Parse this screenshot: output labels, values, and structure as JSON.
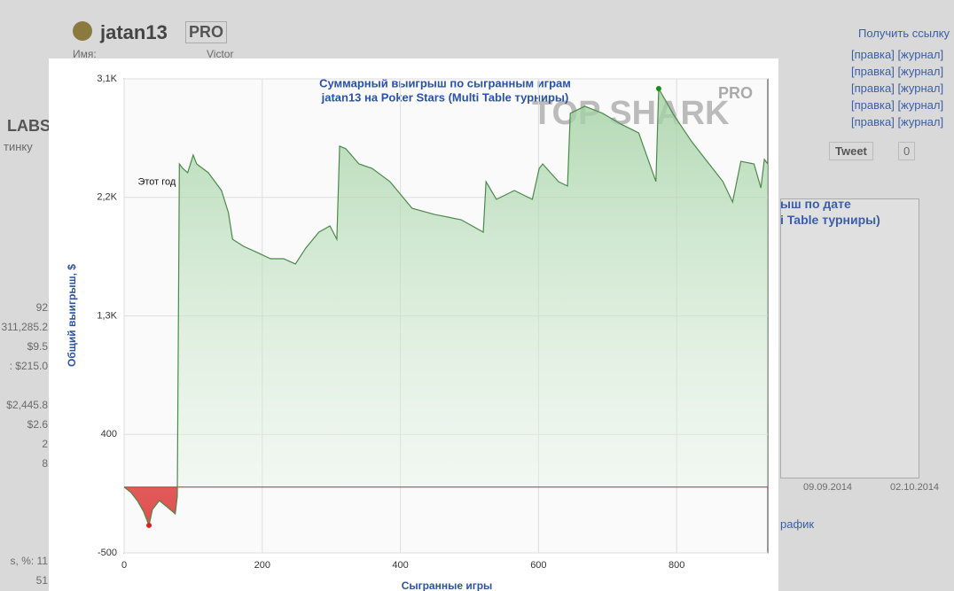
{
  "page": {
    "username": "jatan13",
    "badge": "PRO",
    "name_label": "Имя:",
    "name_value": "Victor",
    "get_link": "Получить ссылку",
    "edit_links": [
      "[правка] [журнал]",
      "[правка] [журнал]",
      "[правка] [журнал]",
      "[правка] [журнал]",
      "[правка] [журнал]"
    ],
    "tweet": "Tweet",
    "tweet_count": "0",
    "logo": "LABS",
    "left_link": "тинку",
    "left_stats": [
      "92",
      "311,285.2",
      "$9.5",
      ": $215.0",
      "$2,445.8",
      "$2.6",
      "2",
      "8",
      "s, %: 11",
      "51"
    ],
    "bg_chart_title": [
      "ыш по дате",
      "i Table турниры)"
    ],
    "bg_chart_dates": [
      "09.09.2014",
      "02.10.2014"
    ],
    "bg_chart_link": "рафик",
    "watermark": "TOP SHARK",
    "watermark_pro": "PRO"
  },
  "chart_data": {
    "type": "area",
    "title": "Суммарный выигрыш по сыгранным играм",
    "subtitle": "jatan13 на Poker Stars (Multi Table турниры)",
    "x_label": "Сыгранные игры",
    "y_label": "Общий выигрыш, $",
    "annotation": "Этот год",
    "annotation_x": 80,
    "xlim": [
      0,
      932
    ],
    "xticks": [
      0,
      200,
      400,
      600,
      800
    ],
    "ylim": [
      -500,
      3100
    ],
    "yticks": [
      -500,
      400,
      {
        "value": 1300,
        "label": "1,3K"
      },
      {
        "value": 2200,
        "label": "2,2K"
      },
      {
        "value": 3100,
        "label": "3,1K"
      }
    ],
    "grid": true,
    "series": [
      {
        "name": "jatan13",
        "color": "#4a8a4a",
        "negative_color": "#c84040",
        "min_color": "#e02020",
        "max_color": "#1a8a1a",
        "x": [
          0,
          10,
          19,
          28,
          36,
          41,
          51,
          62,
          71,
          74,
          77,
          80,
          85,
          92,
          100,
          105,
          122,
          141,
          151,
          157,
          173,
          193,
          212,
          231,
          248,
          263,
          282,
          298,
          308,
          312,
          321,
          340,
          359,
          385,
          417,
          449,
          488,
          520,
          524,
          539,
          565,
          591,
          601,
          606,
          629,
          642,
          646,
          667,
          693,
          719,
          745,
          770,
          774,
          796,
          822,
          847,
          867,
          881,
          893,
          912,
          922,
          927,
          932
        ],
        "values": [
          0,
          -42,
          -103,
          -184,
          -291,
          -170,
          -103,
          -150,
          -190,
          -204,
          -70,
          2454,
          2420,
          2387,
          2522,
          2454,
          2387,
          2252,
          2084,
          1882,
          1828,
          1781,
          1734,
          1734,
          1694,
          1815,
          1936,
          1983,
          1882,
          2589,
          2569,
          2454,
          2420,
          2319,
          2117,
          2071,
          2030,
          1936,
          2319,
          2185,
          2252,
          2185,
          2420,
          2454,
          2319,
          2286,
          2838,
          2892,
          2838,
          2757,
          2690,
          2320,
          3026,
          2824,
          2622,
          2454,
          2320,
          2165,
          2474,
          2454,
          2272,
          2488,
          2454
        ]
      }
    ]
  }
}
